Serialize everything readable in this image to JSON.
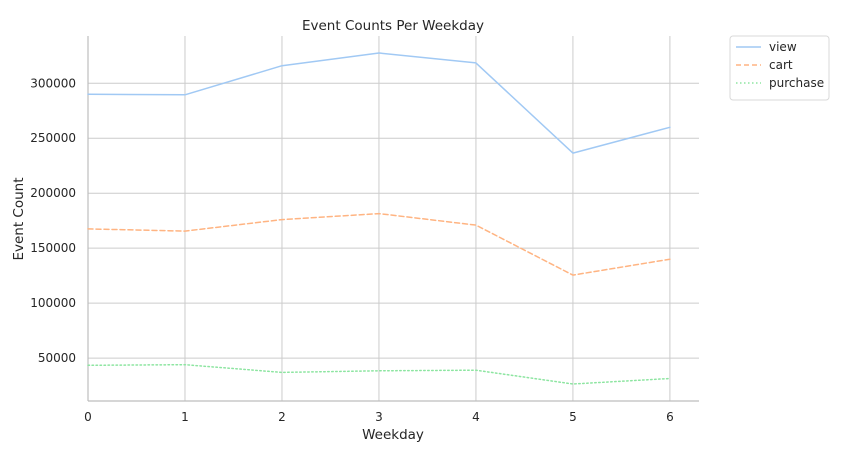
{
  "chart_data": {
    "type": "line",
    "title": "Event Counts Per Weekday",
    "xlabel": "Weekday",
    "ylabel": "Event Count",
    "x": [
      0,
      1,
      2,
      3,
      4,
      5,
      6
    ],
    "x_ticks": [
      "0",
      "1",
      "2",
      "3",
      "4",
      "5",
      "6"
    ],
    "xlim": [
      0,
      6.3
    ],
    "y_ticks": [
      50000,
      100000,
      150000,
      200000,
      250000,
      300000
    ],
    "y_tick_labels": [
      "50000",
      "100000",
      "150000",
      "200000",
      "250000",
      "300000"
    ],
    "ylim": [
      11000,
      343000
    ],
    "grid": true,
    "legend_position": "outside-top-right",
    "series": [
      {
        "name": "view",
        "values": [
          290000,
          289500,
          316000,
          327500,
          318500,
          236500,
          260000
        ],
        "color": "#a1c9f4",
        "dash": "solid"
      },
      {
        "name": "cart",
        "values": [
          167500,
          165500,
          176000,
          181500,
          171000,
          125500,
          140000
        ],
        "color": "#ffb482",
        "dash": "dashed"
      },
      {
        "name": "purchase",
        "values": [
          43500,
          44000,
          37000,
          38500,
          39000,
          26500,
          31500
        ],
        "color": "#8de5a1",
        "dash": "dotted"
      }
    ]
  }
}
